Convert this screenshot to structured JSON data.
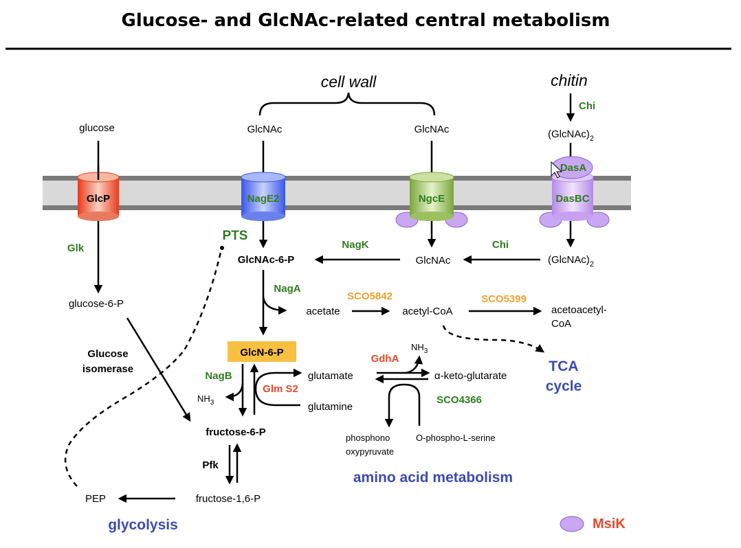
{
  "title": "Glucose- and GlcNAc-related central metabolism",
  "labels": {
    "cell_wall": "cell wall",
    "chitin": "chitin",
    "glucose": "glucose",
    "glcnac_left": "GlcNAc",
    "glcnac_right": "GlcNAc",
    "glcnac2_top": "(GlcNAc)",
    "glcnac2_top_sub": "2",
    "glcnac_mid": "GlcNAc",
    "glcnac2_mid": "(GlcNAc)",
    "glcnac2_mid_sub": "2",
    "glcnac6p": "GlcNAc-6-P",
    "glucose6p": "glucose-6-P",
    "acetate": "acetate",
    "acetylcoa": "acetyl-CoA",
    "acetoacetyl_1": "acetoacetyl-",
    "acetoacetyl_2": "CoA",
    "glcn6p": "GlcN-6-P",
    "glutamate": "glutamate",
    "glutamine": "glutamine",
    "nh3_left": "NH",
    "nh3_left_sub": "3",
    "nh3_right": "NH",
    "nh3_right_sub": "3",
    "akg": "α-keto-glutarate",
    "fructose6p": "fructose-6-P",
    "phospho_1": "phosphono",
    "phospho_2": "oxypyruvate",
    "ophospho": "O-phospho-L-serine",
    "fructose16p": "fructose-1,6-P",
    "pep": "PEP",
    "glucose_isomerase_1": "Glucose",
    "glucose_isomerase_2": "isomerase",
    "pfk": "Pfk"
  },
  "transporters": {
    "glcp": "GlcP",
    "nage2": "NagE2",
    "ngce": "NgcE",
    "dasbc": "DasBC",
    "dasa": "DasA"
  },
  "enzymes": {
    "glk": "Glk",
    "chi_top": "Chi",
    "chi_mid": "Chi",
    "nagk": "NagK",
    "naga": "NagA",
    "sco5842": "SCO5842",
    "sco5399": "SCO5399",
    "gdha": "GdhA",
    "nagb": "NagB",
    "glms2": "Glm S2",
    "sco4366": "SCO4366"
  },
  "pathways": {
    "pts": "PTS",
    "tca_1": "TCA",
    "tca_2": "cycle",
    "amino": "amino acid metabolism",
    "glycolysis": "glycolysis"
  },
  "legend": {
    "msik": "MsiK"
  },
  "colors": {
    "enzyme_green": "#2e7d1e",
    "enzyme_orange": "#f0a030",
    "enzyme_red": "#e8472a",
    "pathway_blue": "#3b4bb0",
    "msik_purple": "#c8a8f0",
    "highlight_box": "#f8c040",
    "membrane": "#d9d9d9"
  }
}
